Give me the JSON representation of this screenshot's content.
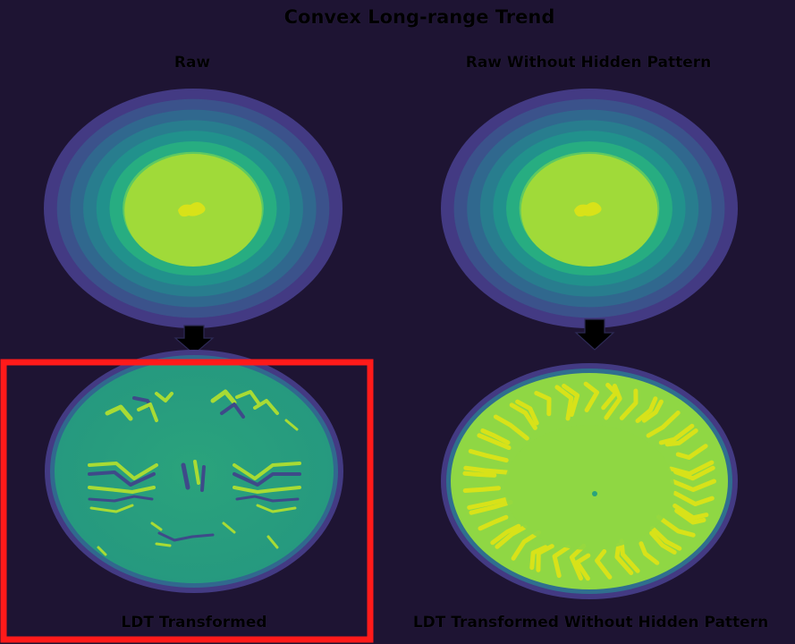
{
  "title": "Convex Long-range Trend",
  "panels": {
    "raw": "Raw",
    "raw_without_hidden": "Raw Without Hidden Pattern",
    "ldt_transformed": "LDT Transformed",
    "ldt_transformed_without_hidden": "LDT Transformed Without Hidden Pattern"
  },
  "highlight": {
    "panel": "ldt_transformed",
    "color": "#ff0000"
  },
  "colors": {
    "background": "#1e1433",
    "ring_colors": [
      "#433a83",
      "#3b528b",
      "#30688e",
      "#287d8e",
      "#21918c",
      "#27ad81",
      "#5ec962",
      "#a0da39"
    ],
    "core": "#a0da39",
    "peak": "#d8e219",
    "ldt_fill": "#2aa37c",
    "ldt_stripe_light": "#a8db34",
    "ldt_stripe_dark": "#3e4a89",
    "ldt_right_fill": "#8fd744",
    "ldt_right_stripe": "#d8e219",
    "arrow": "#000000"
  }
}
